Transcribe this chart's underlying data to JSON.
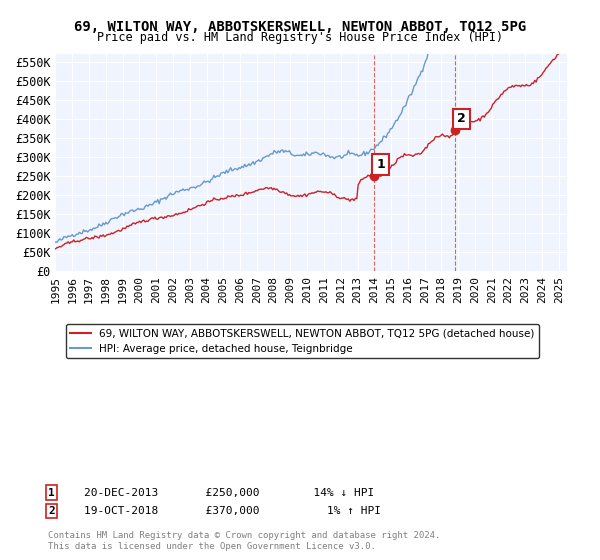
{
  "title": "69, WILTON WAY, ABBOTSKERSWELL, NEWTON ABBOT, TQ12 5PG",
  "subtitle": "Price paid vs. HM Land Registry's House Price Index (HPI)",
  "ylabel_ticks": [
    "£0",
    "£50K",
    "£100K",
    "£150K",
    "£200K",
    "£250K",
    "£300K",
    "£350K",
    "£400K",
    "£450K",
    "£500K",
    "£550K"
  ],
  "ytick_values": [
    0,
    50000,
    100000,
    150000,
    200000,
    250000,
    300000,
    350000,
    400000,
    450000,
    500000,
    550000
  ],
  "ylim": [
    0,
    570000
  ],
  "xlim_start": 1995.0,
  "xlim_end": 2025.5,
  "legend_line1": "69, WILTON WAY, ABBOTSKERSWELL, NEWTON ABBOT, TQ12 5PG (detached house)",
  "legend_line2": "HPI: Average price, detached house, Teignbridge",
  "marker1_date": 2013.97,
  "marker1_price": 250000,
  "marker1_label": "1",
  "marker2_date": 2018.8,
  "marker2_price": 370000,
  "marker2_label": "2",
  "note1": "1   20-DEC-2013       £250,000        14% ↓ HPI",
  "note2": "2   19-OCT-2018       £370,000          1% ↑ HPI",
  "copyright": "Contains HM Land Registry data © Crown copyright and database right 2024.\nThis data is licensed under the Open Government Licence v3.0.",
  "red_dashed_lines": [
    2013.97,
    2018.8
  ],
  "blue_shaded_start": 2018.8,
  "blue_shaded_end": 2025.5,
  "hpi_color": "#6699cc",
  "price_color": "#cc2222",
  "background_plot": "#eef4ff"
}
